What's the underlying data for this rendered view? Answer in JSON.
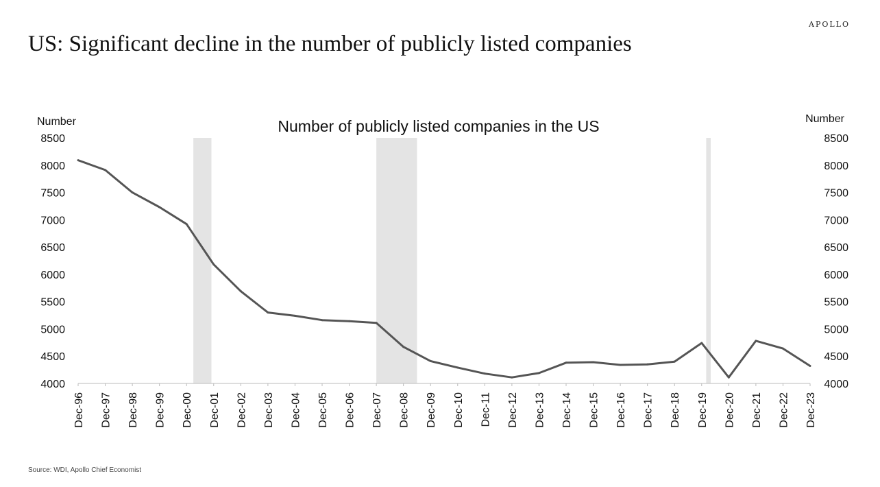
{
  "header": {
    "brand": "APOLLO",
    "title": "US: Significant decline in the number of publicly listed companies"
  },
  "footer": {
    "source": "Source: WDI, Apollo Chief Economist"
  },
  "colors": {
    "line": "#555555",
    "recession": "#e4e4e4",
    "axis": "#bbbbbb"
  },
  "chart_data": {
    "type": "line",
    "title": "Number of publicly listed companies in the US",
    "ylabel_left": "Number",
    "ylabel_right": "Number",
    "ylim": [
      4000,
      8500
    ],
    "yticks": [
      4000,
      4500,
      5000,
      5500,
      6000,
      6500,
      7000,
      7500,
      8000,
      8500
    ],
    "grid": false,
    "categories": [
      "Dec-96",
      "Dec-97",
      "Dec-98",
      "Dec-99",
      "Dec-00",
      "Dec-01",
      "Dec-02",
      "Dec-03",
      "Dec-04",
      "Dec-05",
      "Dec-06",
      "Dec-07",
      "Dec-08",
      "Dec-09",
      "Dec-10",
      "Dec-11",
      "Dec-12",
      "Dec-13",
      "Dec-14",
      "Dec-15",
      "Dec-16",
      "Dec-17",
      "Dec-18",
      "Dec-19",
      "Dec-20",
      "Dec-21",
      "Dec-22",
      "Dec-23"
    ],
    "series": [
      {
        "values": [
          8090,
          7910,
          7500,
          7230,
          6920,
          6180,
          5690,
          5300,
          5240,
          5160,
          5140,
          5110,
          4670,
          4410,
          4290,
          4180,
          4110,
          4190,
          4380,
          4390,
          4340,
          4350,
          4400,
          4740,
          4110,
          4780,
          4640,
          4320
        ]
      }
    ],
    "recession_bands": [
      {
        "start": "Mar-01",
        "end": "Nov-01"
      },
      {
        "start": "Dec-07",
        "end": "Jun-09"
      },
      {
        "start": "Feb-20",
        "end": "Apr-20"
      }
    ]
  }
}
